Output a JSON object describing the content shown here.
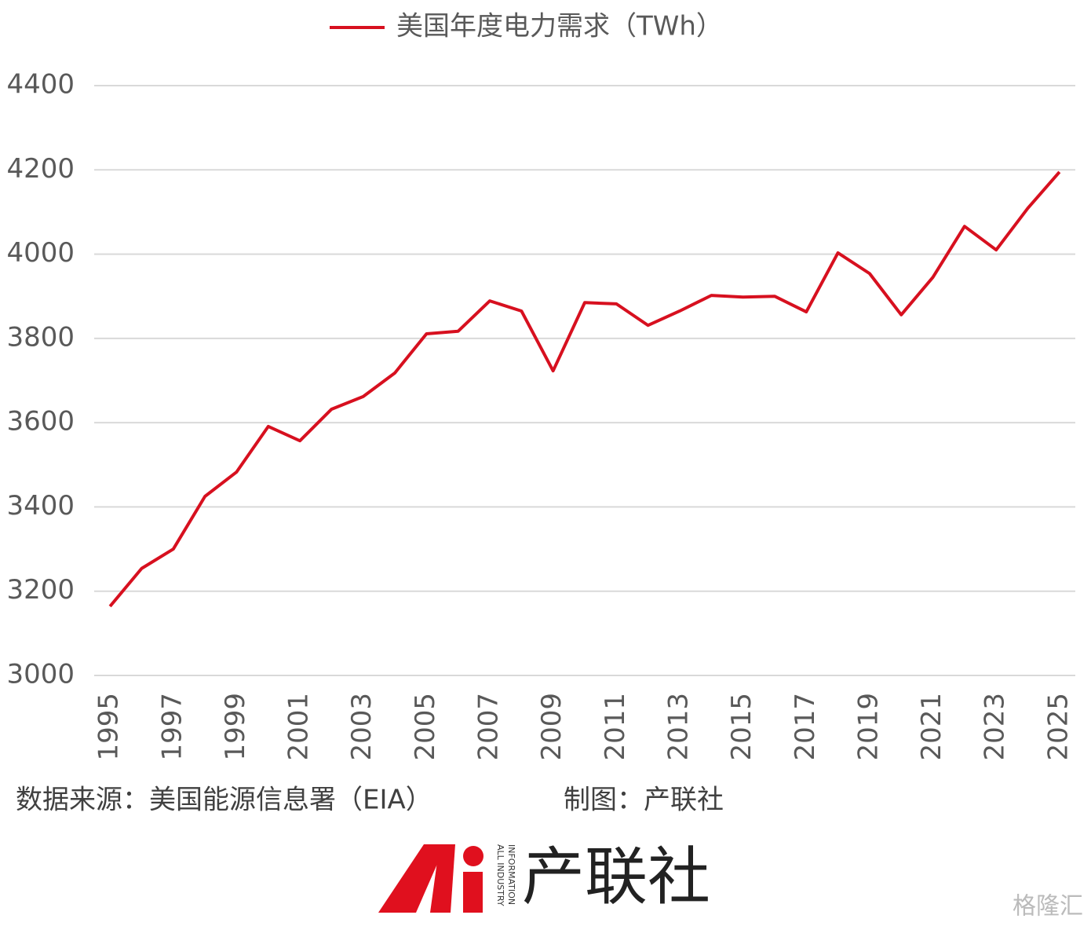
{
  "chart_data": {
    "type": "line",
    "x": [
      1995,
      1996,
      1997,
      1998,
      1999,
      2000,
      2001,
      2002,
      2003,
      2004,
      2005,
      2006,
      2007,
      2008,
      2009,
      2010,
      2011,
      2012,
      2013,
      2014,
      2015,
      2016,
      2017,
      2018,
      2019,
      2020,
      2021,
      2022,
      2023,
      2024,
      2025
    ],
    "series": [
      {
        "name": "美国年度电力需求（TWh）",
        "color": "#d7101f",
        "values": [
          3164,
          3254,
          3300,
          3425,
          3483,
          3591,
          3557,
          3632,
          3662,
          3718,
          3811,
          3817,
          3889,
          3865,
          3723,
          3885,
          3882,
          3831,
          3865,
          3902,
          3898,
          3900,
          3863,
          4003,
          3954,
          3856,
          3945,
          4066,
          4010,
          4109,
          4195
        ]
      }
    ],
    "xlim": [
      1994.5,
      2025.5
    ],
    "xticks": [
      1995,
      1997,
      1999,
      2001,
      2003,
      2005,
      2007,
      2009,
      2011,
      2013,
      2015,
      2017,
      2019,
      2021,
      2023,
      2025
    ],
    "ylim": [
      3000,
      4400
    ],
    "yticks": [
      3000,
      3200,
      3400,
      3600,
      3800,
      4000,
      4200,
      4400
    ],
    "grid": true,
    "legend": "top",
    "source": "数据来源：美国能源信息署（EIA）",
    "credit": "制图：产联社",
    "logo_text": "产联社",
    "logo_subtitle": [
      "ALL INDUSTRY",
      "INFORMATION"
    ],
    "watermark": "格隆汇"
  }
}
